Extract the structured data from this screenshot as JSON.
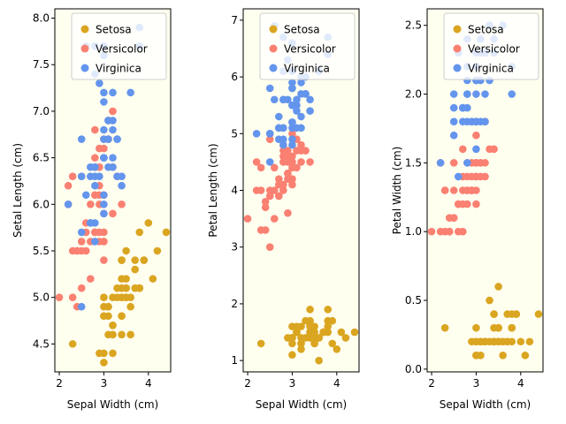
{
  "figure": {
    "background": "#ffffff",
    "panel_background": "#fffff0"
  },
  "chart_data": [
    {
      "type": "scatter",
      "xlabel": "Sepal Width (cm)",
      "ylabel": "Setal Length (cm)",
      "xlim": [
        1.9,
        4.5
      ],
      "ylim": [
        4.2,
        8.1
      ],
      "xticks": [
        2,
        3,
        4
      ],
      "yticks": [
        4.5,
        5.0,
        5.5,
        6.0,
        6.5,
        7.0,
        7.5,
        8.0
      ],
      "ytick_labels": [
        "4.5",
        "5.0",
        "5.5",
        "6.0",
        "6.5",
        "7.0",
        "7.5",
        "8.0"
      ],
      "legend": "upper-right",
      "series": [
        {
          "name": "Setosa",
          "color": "#daa520",
          "x": [
            3.5,
            3.0,
            3.2,
            3.1,
            3.6,
            3.9,
            3.4,
            3.4,
            2.9,
            3.1,
            3.7,
            3.4,
            3.0,
            3.0,
            4.0,
            4.4,
            3.9,
            3.5,
            3.8,
            3.8,
            3.4,
            3.7,
            3.6,
            3.3,
            3.4,
            3.0,
            3.4,
            3.5,
            3.4,
            3.2,
            3.1,
            3.4,
            4.1,
            4.2,
            3.1,
            3.2,
            3.5,
            3.6,
            3.0,
            3.4,
            3.5,
            2.3,
            3.2,
            3.5,
            3.8,
            3.0,
            3.8,
            3.2,
            3.7,
            3.3
          ],
          "y": [
            5.1,
            4.9,
            4.7,
            4.6,
            5.0,
            5.4,
            4.6,
            5.0,
            4.4,
            4.9,
            5.4,
            4.8,
            4.8,
            4.3,
            5.8,
            5.7,
            5.4,
            5.1,
            5.7,
            5.1,
            5.4,
            5.1,
            4.6,
            5.1,
            4.8,
            5.0,
            5.0,
            5.2,
            5.2,
            4.7,
            4.8,
            5.4,
            5.2,
            5.5,
            4.9,
            5.0,
            5.5,
            4.9,
            4.4,
            5.1,
            5.0,
            4.5,
            4.4,
            5.0,
            5.1,
            4.8,
            5.1,
            4.6,
            5.3,
            5.0
          ]
        },
        {
          "name": "Versicolor",
          "color": "#fa8072",
          "x": [
            3.2,
            3.2,
            3.1,
            2.3,
            2.8,
            2.8,
            3.3,
            2.4,
            2.9,
            2.7,
            2.0,
            3.0,
            2.2,
            2.9,
            2.9,
            3.1,
            3.0,
            2.7,
            2.2,
            2.5,
            3.2,
            2.8,
            2.5,
            2.8,
            2.9,
            3.0,
            2.8,
            3.0,
            2.9,
            2.6,
            2.4,
            2.4,
            2.7,
            2.7,
            3.0,
            3.4,
            3.1,
            2.3,
            3.0,
            2.5,
            2.6,
            3.0,
            2.6,
            2.3,
            2.7,
            3.0,
            2.9,
            2.9,
            2.5,
            2.8
          ],
          "y": [
            7.0,
            6.4,
            6.9,
            5.5,
            6.5,
            5.7,
            6.3,
            4.9,
            6.6,
            5.2,
            5.0,
            5.9,
            6.0,
            6.1,
            5.6,
            6.7,
            5.6,
            5.8,
            6.2,
            5.6,
            5.9,
            6.1,
            6.3,
            6.1,
            6.4,
            6.6,
            6.8,
            6.7,
            6.0,
            5.7,
            5.5,
            5.5,
            5.8,
            6.0,
            5.4,
            6.0,
            6.7,
            6.3,
            5.6,
            5.5,
            5.5,
            6.1,
            5.8,
            5.0,
            5.6,
            5.7,
            5.7,
            6.2,
            5.1,
            5.7
          ]
        },
        {
          "name": "Virginica",
          "color": "#6495ed",
          "x": [
            3.3,
            2.7,
            3.0,
            2.9,
            3.0,
            3.0,
            2.5,
            2.9,
            2.5,
            3.6,
            3.2,
            2.7,
            3.0,
            2.5,
            2.8,
            3.2,
            3.0,
            3.8,
            2.6,
            2.2,
            3.2,
            2.8,
            2.8,
            2.7,
            3.3,
            3.2,
            2.8,
            3.0,
            2.8,
            3.0,
            2.8,
            3.8,
            2.8,
            2.8,
            2.6,
            3.0,
            3.4,
            3.1,
            3.0,
            3.1,
            3.1,
            3.1,
            2.7,
            3.2,
            3.3,
            3.0,
            2.5,
            3.0,
            3.4,
            3.0
          ],
          "y": [
            6.3,
            5.8,
            7.1,
            6.3,
            6.5,
            7.6,
            4.9,
            7.3,
            6.7,
            7.2,
            6.5,
            6.4,
            6.8,
            5.7,
            5.8,
            6.4,
            6.5,
            7.7,
            7.7,
            6.0,
            6.9,
            5.6,
            7.7,
            6.3,
            6.7,
            7.2,
            6.2,
            6.1,
            6.4,
            7.2,
            7.4,
            7.9,
            6.4,
            6.3,
            6.1,
            7.7,
            6.3,
            6.4,
            6.0,
            6.9,
            6.7,
            6.9,
            5.8,
            6.8,
            6.7,
            6.7,
            6.3,
            6.5,
            6.2,
            5.9
          ]
        }
      ]
    },
    {
      "type": "scatter",
      "xlabel": "Sepal Width (cm)",
      "ylabel": "Petal Length (cm)",
      "xlim": [
        1.9,
        4.5
      ],
      "ylim": [
        0.8,
        7.2
      ],
      "xticks": [
        2,
        3,
        4
      ],
      "yticks": [
        1,
        2,
        3,
        4,
        5,
        6,
        7
      ],
      "ytick_labels": [
        "1",
        "2",
        "3",
        "4",
        "5",
        "6",
        "7"
      ],
      "legend": "upper-right",
      "series": [
        {
          "name": "Setosa",
          "color": "#daa520",
          "x": [
            3.5,
            3.0,
            3.2,
            3.1,
            3.6,
            3.9,
            3.4,
            3.4,
            2.9,
            3.1,
            3.7,
            3.4,
            3.0,
            3.0,
            4.0,
            4.4,
            3.9,
            3.5,
            3.8,
            3.8,
            3.4,
            3.7,
            3.6,
            3.3,
            3.4,
            3.0,
            3.4,
            3.5,
            3.4,
            3.2,
            3.1,
            3.4,
            4.1,
            4.2,
            3.1,
            3.2,
            3.5,
            3.6,
            3.0,
            3.4,
            3.5,
            2.3,
            3.2,
            3.5,
            3.8,
            3.0,
            3.8,
            3.2,
            3.7,
            3.3
          ],
          "y": [
            1.4,
            1.4,
            1.3,
            1.5,
            1.4,
            1.7,
            1.4,
            1.5,
            1.4,
            1.5,
            1.5,
            1.6,
            1.4,
            1.1,
            1.2,
            1.5,
            1.3,
            1.4,
            1.7,
            1.5,
            1.7,
            1.5,
            1.0,
            1.7,
            1.9,
            1.6,
            1.6,
            1.5,
            1.4,
            1.6,
            1.6,
            1.5,
            1.5,
            1.4,
            1.5,
            1.2,
            1.3,
            1.4,
            1.3,
            1.5,
            1.3,
            1.3,
            1.3,
            1.6,
            1.9,
            1.4,
            1.6,
            1.4,
            1.5,
            1.4
          ]
        },
        {
          "name": "Versicolor",
          "color": "#fa8072",
          "x": [
            3.2,
            3.2,
            3.1,
            2.3,
            2.8,
            2.8,
            3.3,
            2.4,
            2.9,
            2.7,
            2.0,
            3.0,
            2.2,
            2.9,
            2.9,
            3.1,
            3.0,
            2.7,
            2.2,
            2.5,
            3.2,
            2.8,
            2.5,
            2.8,
            2.9,
            3.0,
            2.8,
            3.0,
            2.9,
            2.6,
            2.4,
            2.4,
            2.7,
            2.7,
            3.0,
            3.4,
            3.1,
            2.3,
            3.0,
            2.5,
            2.6,
            3.0,
            2.6,
            2.3,
            2.7,
            3.0,
            2.9,
            2.9,
            2.5,
            2.8
          ],
          "y": [
            4.7,
            4.5,
            4.9,
            4.0,
            4.6,
            4.5,
            4.7,
            3.3,
            4.6,
            3.9,
            3.5,
            4.2,
            4.0,
            4.7,
            3.6,
            4.4,
            4.5,
            4.1,
            4.5,
            3.9,
            4.8,
            4.0,
            4.9,
            4.7,
            4.3,
            4.4,
            4.8,
            5.0,
            4.5,
            3.5,
            3.8,
            3.7,
            3.9,
            5.1,
            4.5,
            4.5,
            4.7,
            4.4,
            4.1,
            4.0,
            4.4,
            4.6,
            4.0,
            3.3,
            4.2,
            4.2,
            4.2,
            4.3,
            3.0,
            4.1
          ]
        },
        {
          "name": "Virginica",
          "color": "#6495ed",
          "x": [
            3.3,
            2.7,
            3.0,
            2.9,
            3.0,
            3.0,
            2.5,
            2.9,
            2.5,
            3.6,
            3.2,
            2.7,
            3.0,
            2.5,
            2.8,
            3.2,
            3.0,
            3.8,
            2.6,
            2.2,
            3.2,
            2.8,
            2.8,
            2.7,
            3.3,
            3.2,
            2.8,
            3.0,
            2.8,
            3.0,
            2.8,
            3.8,
            2.8,
            2.8,
            2.6,
            3.0,
            3.4,
            3.1,
            3.0,
            3.1,
            3.1,
            3.1,
            2.7,
            3.2,
            3.3,
            3.0,
            2.5,
            3.0,
            3.4,
            3.0
          ],
          "y": [
            6.0,
            5.1,
            5.9,
            5.6,
            5.8,
            6.6,
            4.5,
            6.3,
            5.8,
            6.1,
            5.1,
            5.3,
            5.5,
            5.0,
            5.1,
            5.3,
            5.5,
            6.7,
            6.9,
            5.0,
            5.7,
            4.9,
            6.7,
            4.9,
            5.7,
            6.0,
            4.8,
            4.9,
            5.6,
            5.8,
            6.1,
            6.4,
            5.6,
            5.1,
            5.6,
            6.1,
            5.6,
            5.5,
            4.8,
            5.4,
            5.6,
            5.1,
            5.1,
            5.9,
            5.7,
            5.2,
            5.0,
            5.2,
            5.4,
            5.1
          ]
        }
      ]
    },
    {
      "type": "scatter",
      "xlabel": "Sepal Width (cm)",
      "ylabel": "Petal Width (cm)",
      "xlim": [
        1.9,
        4.5
      ],
      "ylim": [
        -0.02,
        2.62
      ],
      "xticks": [
        2,
        3,
        4
      ],
      "yticks": [
        0.0,
        0.5,
        1.0,
        1.5,
        2.0,
        2.5
      ],
      "ytick_labels": [
        "0.0",
        "0.5",
        "1.0",
        "1.5",
        "2.0",
        "2.5"
      ],
      "legend": "upper-right",
      "series": [
        {
          "name": "Setosa",
          "color": "#daa520",
          "x": [
            3.5,
            3.0,
            3.2,
            3.1,
            3.6,
            3.9,
            3.4,
            3.4,
            2.9,
            3.1,
            3.7,
            3.4,
            3.0,
            3.0,
            4.0,
            4.4,
            3.9,
            3.5,
            3.8,
            3.8,
            3.4,
            3.7,
            3.6,
            3.3,
            3.4,
            3.0,
            3.4,
            3.5,
            3.4,
            3.2,
            3.1,
            3.4,
            4.1,
            4.2,
            3.1,
            3.2,
            3.5,
            3.6,
            3.0,
            3.4,
            3.5,
            2.3,
            3.2,
            3.5,
            3.8,
            3.0,
            3.8,
            3.2,
            3.7,
            3.3
          ],
          "y": [
            0.2,
            0.2,
            0.2,
            0.2,
            0.2,
            0.4,
            0.3,
            0.2,
            0.2,
            0.1,
            0.2,
            0.2,
            0.1,
            0.1,
            0.2,
            0.4,
            0.4,
            0.3,
            0.3,
            0.3,
            0.2,
            0.4,
            0.2,
            0.5,
            0.2,
            0.2,
            0.4,
            0.2,
            0.2,
            0.2,
            0.2,
            0.4,
            0.1,
            0.2,
            0.2,
            0.2,
            0.2,
            0.1,
            0.2,
            0.2,
            0.3,
            0.3,
            0.2,
            0.6,
            0.4,
            0.3,
            0.2,
            0.2,
            0.2,
            0.2
          ]
        },
        {
          "name": "Versicolor",
          "color": "#fa8072",
          "x": [
            3.2,
            3.2,
            3.1,
            2.3,
            2.8,
            2.8,
            3.3,
            2.4,
            2.9,
            2.7,
            2.0,
            3.0,
            2.2,
            2.9,
            2.9,
            3.1,
            3.0,
            2.7,
            2.2,
            2.5,
            3.2,
            2.8,
            2.5,
            2.8,
            2.9,
            3.0,
            2.8,
            3.0,
            2.9,
            2.6,
            2.4,
            2.4,
            2.7,
            2.7,
            3.0,
            3.4,
            3.1,
            2.3,
            3.0,
            2.5,
            2.6,
            3.0,
            2.6,
            2.3,
            2.7,
            3.0,
            2.9,
            2.9,
            2.5,
            2.8
          ],
          "y": [
            1.4,
            1.5,
            1.5,
            1.3,
            1.5,
            1.3,
            1.6,
            1.0,
            1.3,
            1.4,
            1.0,
            1.5,
            1.0,
            1.4,
            1.3,
            1.4,
            1.5,
            1.0,
            1.5,
            1.1,
            1.8,
            1.3,
            1.5,
            1.2,
            1.3,
            1.4,
            1.4,
            1.7,
            1.5,
            1.0,
            1.1,
            1.0,
            1.2,
            1.6,
            1.5,
            1.6,
            1.5,
            1.3,
            1.3,
            1.3,
            1.2,
            1.4,
            1.2,
            1.0,
            1.3,
            1.2,
            1.3,
            1.3,
            1.1,
            1.3
          ]
        },
        {
          "name": "Virginica",
          "color": "#6495ed",
          "x": [
            3.3,
            2.7,
            3.0,
            2.9,
            3.0,
            3.0,
            2.5,
            2.9,
            2.5,
            3.6,
            3.2,
            2.7,
            3.0,
            2.5,
            2.8,
            3.2,
            3.0,
            3.8,
            2.6,
            2.2,
            3.2,
            2.8,
            2.8,
            2.7,
            3.3,
            3.2,
            2.8,
            3.0,
            2.8,
            3.0,
            2.8,
            3.8,
            2.8,
            2.8,
            2.6,
            3.0,
            3.4,
            3.1,
            3.0,
            3.1,
            3.1,
            3.1,
            2.7,
            3.2,
            3.3,
            3.0,
            2.5,
            3.0,
            3.4,
            3.0
          ],
          "y": [
            2.5,
            1.9,
            2.1,
            1.8,
            2.2,
            2.1,
            1.7,
            1.8,
            1.8,
            2.5,
            2.0,
            1.9,
            2.1,
            2.0,
            2.4,
            2.3,
            1.8,
            2.2,
            2.3,
            1.5,
            2.3,
            2.0,
            2.0,
            1.8,
            2.1,
            1.8,
            1.8,
            1.8,
            2.1,
            1.6,
            1.9,
            2.0,
            2.2,
            1.5,
            1.4,
            2.3,
            2.4,
            1.8,
            1.8,
            2.1,
            2.4,
            2.3,
            1.9,
            2.3,
            2.5,
            2.3,
            1.9,
            2.0,
            2.3,
            1.8
          ]
        }
      ]
    }
  ]
}
